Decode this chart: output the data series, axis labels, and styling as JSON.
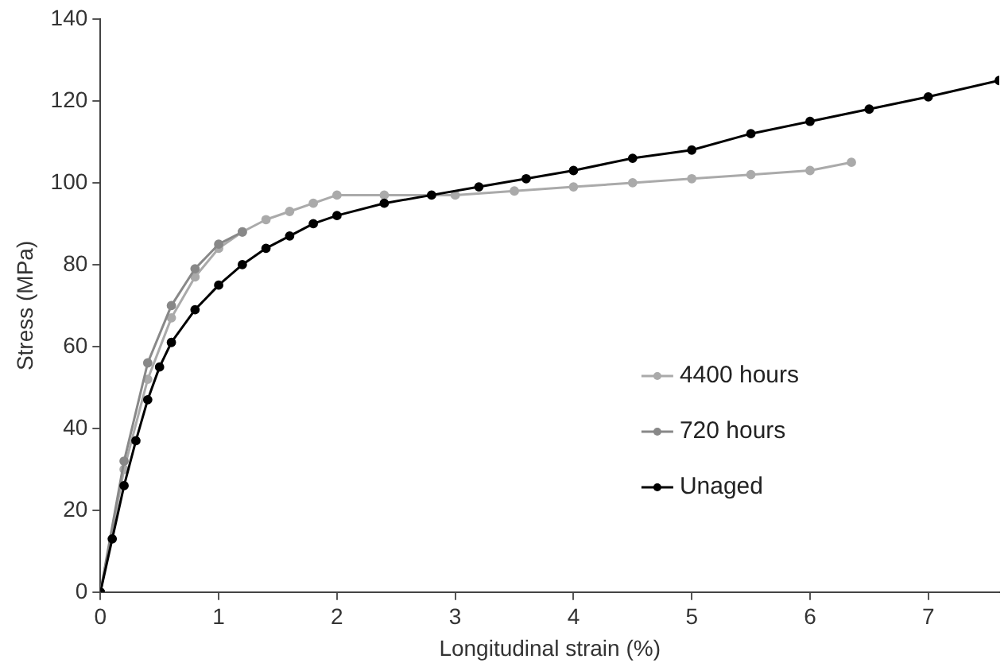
{
  "chart_data": {
    "type": "line",
    "xlabel": "Longitudinal strain (%)",
    "ylabel": "Stress (MPa)",
    "xlim": [
      0,
      7.6
    ],
    "xticks": [
      0,
      1,
      2,
      3,
      4,
      5,
      6,
      7
    ],
    "ylim": [
      0,
      140
    ],
    "yticks": [
      0,
      20,
      40,
      60,
      80,
      100,
      120,
      140
    ],
    "grid": false,
    "legend": "right",
    "marker": "circle",
    "series": [
      {
        "name": "4400 hours",
        "color": "#aaaaaa",
        "x": [
          0,
          0.2,
          0.4,
          0.6,
          0.8,
          1,
          1.2,
          1.4,
          1.6,
          1.8,
          2,
          2.4,
          3,
          3.5,
          4,
          4.5,
          5,
          5.5,
          6,
          6.35
        ],
        "values": [
          0,
          30,
          52,
          67,
          77,
          84,
          88,
          91,
          93,
          95,
          97,
          97,
          97,
          98,
          99,
          100,
          101,
          102,
          103,
          105
        ]
      },
      {
        "name": "720 hours",
        "color": "#888888",
        "x": [
          0,
          0.2,
          0.4,
          0.6,
          0.8,
          1,
          1.2
        ],
        "values": [
          0,
          32,
          56,
          70,
          79,
          85,
          88
        ]
      },
      {
        "name": "Unaged",
        "color": "#000000",
        "x": [
          0,
          0.1,
          0.2,
          0.3,
          0.4,
          0.5,
          0.6,
          0.8,
          1,
          1.2,
          1.4,
          1.6,
          1.8,
          2,
          2.4,
          2.8,
          3.2,
          3.6,
          4,
          4.5,
          5,
          5.5,
          6,
          6.5,
          7,
          7.6
        ],
        "values": [
          0,
          13,
          26,
          37,
          47,
          55,
          61,
          69,
          75,
          80,
          84,
          87,
          90,
          92,
          95,
          97,
          99,
          101,
          103,
          106,
          108,
          112,
          115,
          118,
          121,
          125
        ]
      }
    ]
  }
}
